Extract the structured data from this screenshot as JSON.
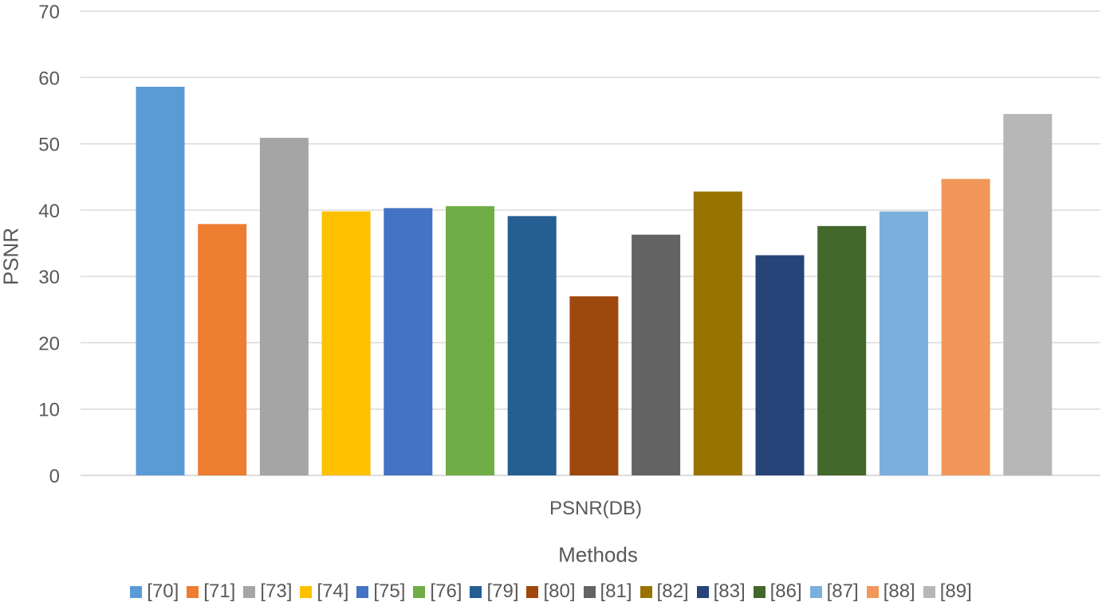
{
  "chart_data": {
    "type": "bar",
    "ylabel": "PSNR",
    "xlabel": "Methods",
    "category_label": "PSNR(DB)",
    "ylim": [
      0,
      70
    ],
    "yticks": [
      0,
      10,
      20,
      30,
      40,
      50,
      60,
      70
    ],
    "grid": true,
    "legend_position": "bottom",
    "series": [
      {
        "name": "[70]",
        "value": 58.6,
        "color": "#5B9BD5"
      },
      {
        "name": "[71]",
        "value": 37.9,
        "color": "#ED7D31"
      },
      {
        "name": "[73]",
        "value": 50.9,
        "color": "#A5A5A5"
      },
      {
        "name": "[74]",
        "value": 39.8,
        "color": "#FFC000"
      },
      {
        "name": "[75]",
        "value": 40.3,
        "color": "#4472C4"
      },
      {
        "name": "[76]",
        "value": 40.6,
        "color": "#70AD47"
      },
      {
        "name": "[79]",
        "value": 39.1,
        "color": "#255E91"
      },
      {
        "name": "[80]",
        "value": 27.0,
        "color": "#9E480E"
      },
      {
        "name": "[81]",
        "value": 36.3,
        "color": "#636363"
      },
      {
        "name": "[82]",
        "value": 42.8,
        "color": "#997300"
      },
      {
        "name": "[83]",
        "value": 33.2,
        "color": "#264478"
      },
      {
        "name": "[86]",
        "value": 37.6,
        "color": "#43682B"
      },
      {
        "name": "[87]",
        "value": 39.8,
        "color": "#7CAFDD"
      },
      {
        "name": "[88]",
        "value": 44.7,
        "color": "#F1975A"
      },
      {
        "name": "[89]",
        "value": 54.5,
        "color": "#B7B7B7"
      }
    ]
  }
}
